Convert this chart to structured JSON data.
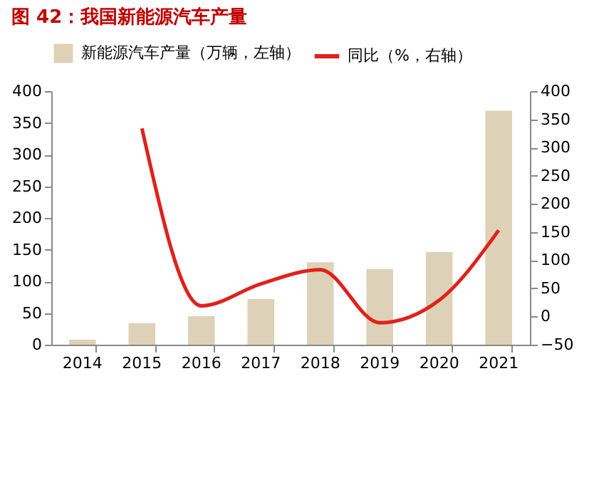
{
  "chart_data": {
    "type": "bar",
    "title": "图 42：我国新能源汽车产量",
    "categories": [
      "2014",
      "2015",
      "2016",
      "2017",
      "2018",
      "2019",
      "2020",
      "2021"
    ],
    "series": [
      {
        "name": "新能源汽车产量（万辆，左轴）",
        "color": "#ddd1b7",
        "values": [
          8,
          34,
          45,
          72,
          130,
          119,
          146,
          369
        ]
      },
      {
        "name": "同比（%，右轴）",
        "type": "line",
        "axis": "y2",
        "color": "#e0211b",
        "values": [
          null,
          334,
          19,
          58,
          83,
          -11,
          29,
          153
        ]
      }
    ],
    "ylim": [
      0,
      400
    ],
    "yticks": [
      0,
      50,
      100,
      150,
      200,
      250,
      300,
      350,
      400
    ],
    "y2lim": [
      -50,
      400
    ],
    "y2ticks": [
      -50,
      0,
      50,
      100,
      150,
      200,
      250,
      300,
      350,
      400
    ],
    "legend": "top"
  }
}
